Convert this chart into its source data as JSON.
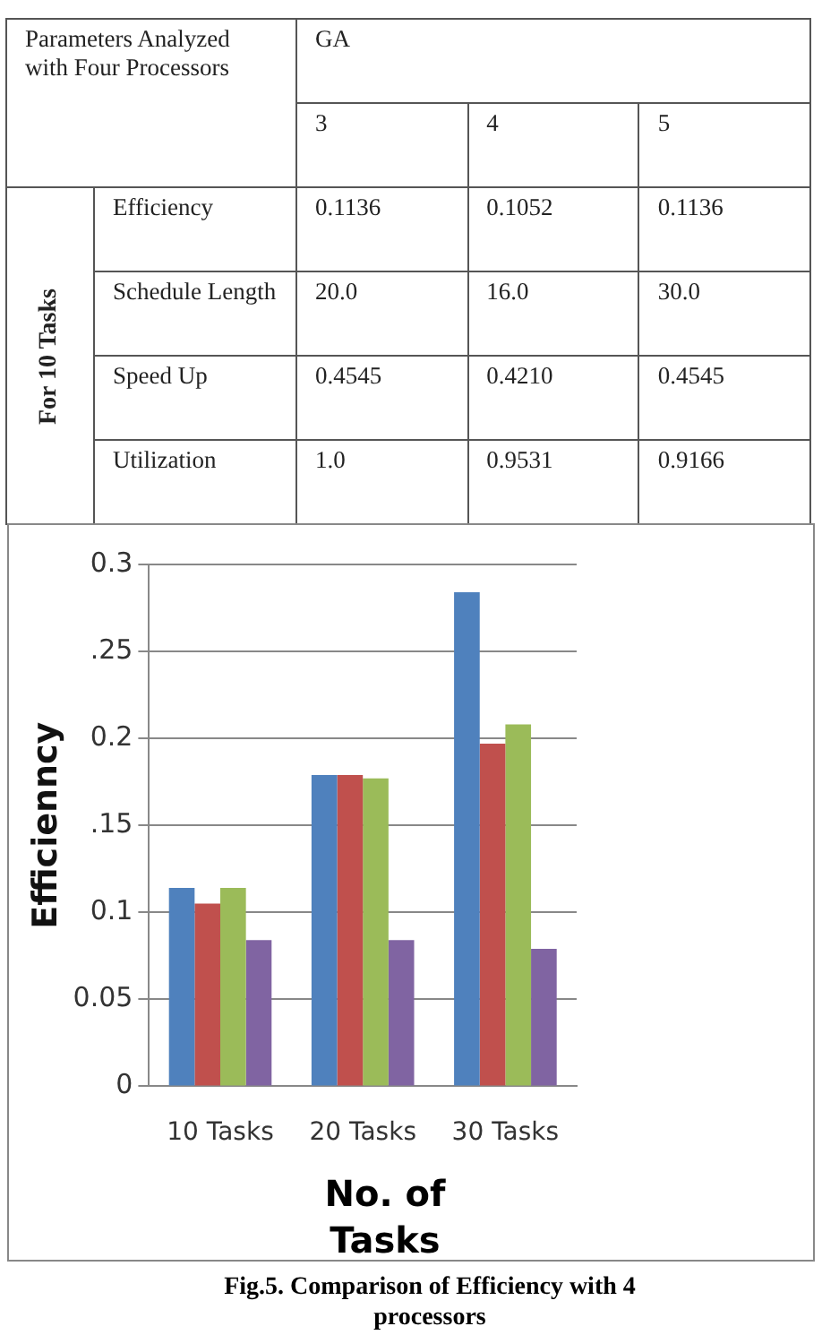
{
  "chart_data": [
    {
      "type": "heatmap",
      "title": "Parameters Analyzed with Four Processors",
      "xlabel": "GA",
      "ylabel": "For 10 Tasks",
      "categories": [
        "3",
        "4",
        "5"
      ],
      "y_categories": [
        "Efficiency",
        "Schedule Length",
        "Speed Up",
        "Utilization"
      ],
      "cells": [
        [
          0.1136,
          0.1052,
          0.1136
        ],
        [
          20,
          16,
          30
        ],
        [
          0.4545,
          0.421,
          0.4545
        ],
        [
          1,
          0.9531,
          0.9166
        ]
      ],
      "cell_labels": [
        [
          "0.1136",
          "0.1052",
          "0.1136"
        ],
        [
          "20.0",
          "16.0",
          "30.0"
        ],
        [
          "0.4545",
          "0.4210",
          "0.4545"
        ],
        [
          "1.0",
          "0.9531",
          "0.9166"
        ]
      ]
    },
    {
      "type": "bar",
      "ylabel": "Efficienncy",
      "xlabel": "No. of Tasks",
      "categories": [
        "10 Tasks",
        "20 Tasks",
        "30 Tasks"
      ],
      "series": [
        {
          "color": "#4f81bd",
          "values": [
            0.114,
            0.179,
            0.284
          ]
        },
        {
          "color": "#c0504d",
          "values": [
            0.105,
            0.179,
            0.197
          ]
        },
        {
          "color": "#9bbb59",
          "values": [
            0.114,
            0.177,
            0.208
          ]
        },
        {
          "color": "#8064a2",
          "values": [
            0.084,
            0.084,
            0.079
          ]
        }
      ],
      "ylim": [
        0,
        0.3
      ],
      "yticks": [
        0,
        0.05,
        0.1,
        {
          "value": 0.15,
          "label": ".15"
        },
        0.2,
        {
          "value": 0.25,
          "label": ".25"
        },
        0.3
      ],
      "grid": "y",
      "legend": false,
      "annotations": [
        "Fig.5. Comparison of Efficiency with 4 processors"
      ]
    }
  ]
}
